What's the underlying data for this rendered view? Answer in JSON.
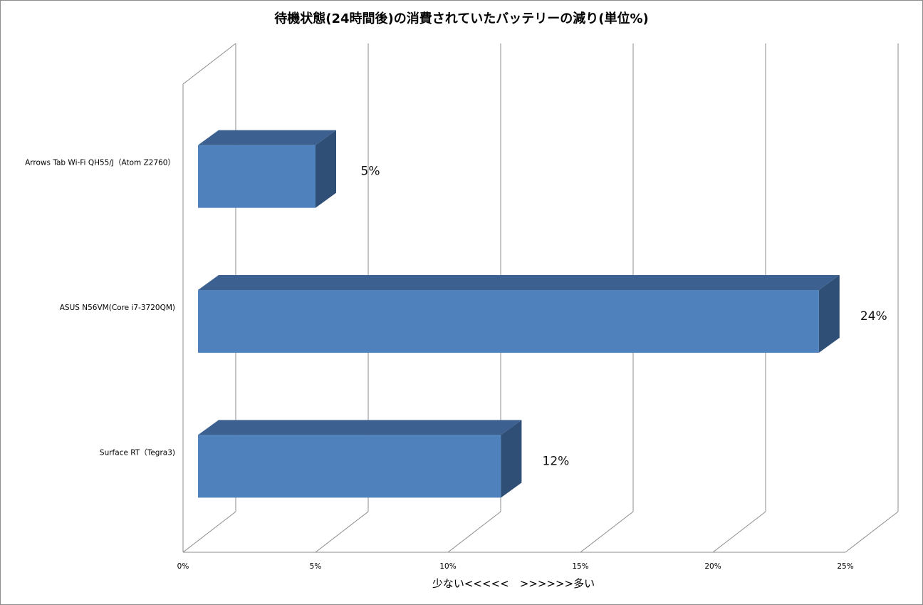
{
  "chart_data": {
    "type": "bar",
    "orientation": "horizontal",
    "style": "3d",
    "title": "待機状態(24時間後)の消費されていたバッテリーの減り(単位%)",
    "xlabel": "少ない<<<<<　>>>>>>多い",
    "ylabel": "",
    "categories": [
      "Arrows Tab Wi-Fi QH55/J（Atom Z2760）",
      "ASUS N56VM(Core i7-3720QM)",
      "Surface RT（Tegra3)"
    ],
    "values": [
      5,
      24,
      12
    ],
    "data_labels": [
      "5%",
      "24%",
      "12%"
    ],
    "xlim": [
      0,
      25
    ],
    "xticks": [
      0,
      5,
      10,
      15,
      20,
      25
    ],
    "xtick_labels": [
      "0%",
      "5%",
      "10%",
      "15%",
      "20%",
      "25%"
    ],
    "grid": true,
    "legend": "none",
    "colors": {
      "bar_front": "#4f81bd",
      "bar_top": "#3c6190",
      "bar_side": "#2f4f76",
      "grid": "#8c8c8c"
    }
  }
}
